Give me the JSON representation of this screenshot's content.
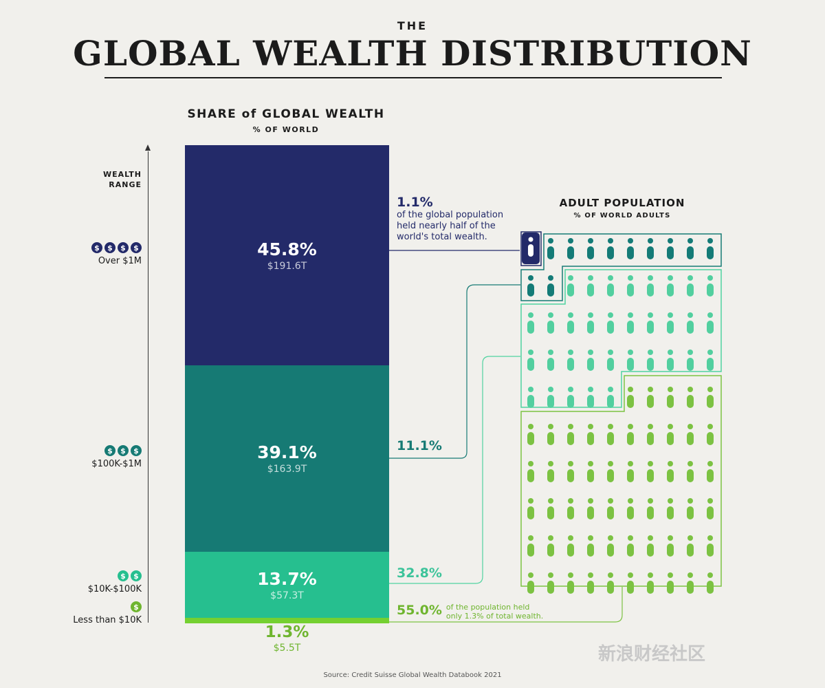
{
  "header": {
    "small_title": "THE",
    "main_title": "GLOBAL WEALTH DISTRIBUTION"
  },
  "wealth_chart": {
    "heading": "SHARE of GLOBAL WEALTH",
    "subheading": "% OF WORLD",
    "axis_label_line1": "WEALTH",
    "axis_label_line2": "RANGE"
  },
  "population_chart": {
    "heading": "ADULT POPULATION",
    "subheading": "% OF WORLD ADULTS"
  },
  "ranges": [
    {
      "coins": 4,
      "label": "Over $1M",
      "color": "#232a69"
    },
    {
      "coins": 3,
      "label": "$100K-$1M",
      "color": "#167a74"
    },
    {
      "coins": 2,
      "label": "$10K-$100K",
      "color": "#26bf8f"
    },
    {
      "coins": 1,
      "label": "Less than $10K",
      "color": "#6fb52f"
    }
  ],
  "coin_symbol": "$",
  "segments": [
    {
      "pct": "45.8%",
      "amount": "$191.6T"
    },
    {
      "pct": "39.1%",
      "amount": "$163.9T"
    },
    {
      "pct": "13.7%",
      "amount": "$57.3T"
    },
    {
      "pct": "1.3%",
      "amount": "$5.5T"
    }
  ],
  "callouts": {
    "c1_pct": "1.1%",
    "c1_text1": "of the global population",
    "c1_text2": "held nearly half of the",
    "c1_text3": "world's total wealth.",
    "c2_pct": "11.1%",
    "c3_pct": "32.8%",
    "c4_pct": "55.0%",
    "c4_text1": "of the population held",
    "c4_text2": "only 1.3% of total wealth."
  },
  "source": "Source: Credit Suisse Global Wealth Databook 2021",
  "watermark_text": "新浪财经社区",
  "chart_data": {
    "type": "bar",
    "title": "SHARE of GLOBAL WEALTH",
    "subtitle": "% OF WORLD",
    "stacked": true,
    "categories": [
      "Over $1M",
      "$100K-$1M",
      "$10K-$100K",
      "Less than $10K"
    ],
    "series": [
      {
        "name": "Share of global wealth (%)",
        "values": [
          45.8,
          39.1,
          13.7,
          1.3
        ]
      },
      {
        "name": "Adult population (%)",
        "values": [
          1.1,
          11.1,
          32.8,
          55.0
        ]
      }
    ],
    "wealth_trillions_usd": [
      191.6,
      163.9,
      57.3,
      5.5
    ],
    "ylabel": "WEALTH RANGE",
    "ylim": [
      0,
      100
    ],
    "icon_grid": {
      "columns": 10,
      "rows": 10,
      "counts": [
        1,
        11,
        33,
        55
      ]
    },
    "colors": [
      "#232a69",
      "#167a74",
      "#4fd3a0",
      "#7cc242"
    ]
  }
}
